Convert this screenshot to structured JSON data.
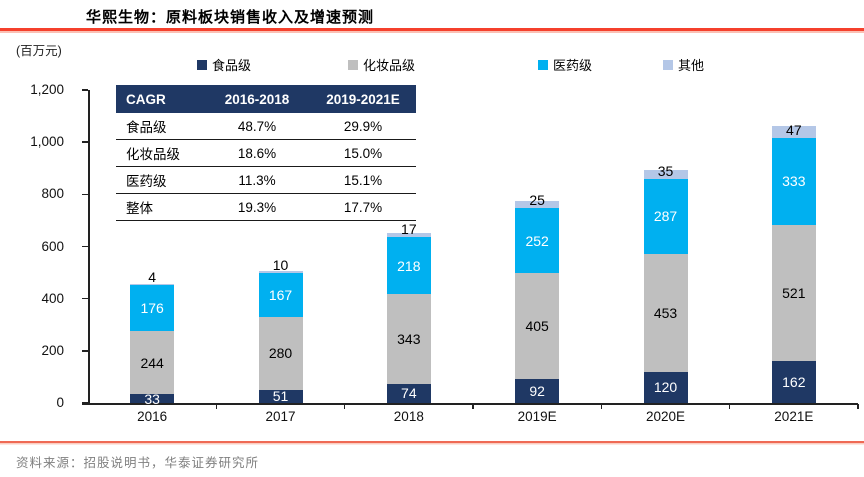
{
  "header": {
    "title": "华熙生物：原料板块销售收入及增速预测"
  },
  "footer": {
    "source": "资料来源：招股说明书，华泰证券研究所"
  },
  "chart_data": {
    "type": "bar",
    "stacked": true,
    "title": "华熙生物：原料板块销售收入及增速预测",
    "unit_label": "(百万元)",
    "xlabel": "",
    "ylabel": "(百万元)",
    "categories": [
      "2016",
      "2017",
      "2018",
      "2019E",
      "2020E",
      "2021E"
    ],
    "series": [
      {
        "key": "food-grade",
        "name": "食品级",
        "color": "#1F3864",
        "label_color": "#FFFFFF",
        "values": [
          33,
          51,
          74,
          92,
          120,
          162
        ]
      },
      {
        "key": "cosmetic-grade",
        "name": "化妆品级",
        "color": "#BFBFBF",
        "label_color": "#000000",
        "values": [
          244,
          280,
          343,
          405,
          453,
          521
        ]
      },
      {
        "key": "pharma-grade",
        "name": "医药级",
        "color": "#00B0F0",
        "label_color": "#FFFFFF",
        "values": [
          176,
          167,
          218,
          252,
          287,
          333
        ]
      },
      {
        "key": "other",
        "name": "其他",
        "color": "#B4C7E7",
        "label_color": "#000000",
        "values": [
          4,
          10,
          17,
          25,
          35,
          47
        ]
      }
    ],
    "y_axis": {
      "min": 0,
      "max": 1200,
      "ticks": [
        "1,200",
        "1,000",
        "800",
        "600",
        "400",
        "200",
        "0"
      ],
      "tick_values": [
        1200,
        1000,
        800,
        600,
        400,
        200,
        0
      ]
    },
    "legend_position": "top",
    "grid": false
  },
  "cagr_table": {
    "header_bg": "#1F3864",
    "columns": [
      "CAGR",
      "2016-2018",
      "2019-2021E"
    ],
    "rows": [
      {
        "label": "食品级",
        "v1": "48.7%",
        "v2": "29.9%"
      },
      {
        "label": "化妆品级",
        "v1": "18.6%",
        "v2": "15.0%"
      },
      {
        "label": "医药级",
        "v1": "11.3%",
        "v2": "15.1%"
      },
      {
        "label": "整体",
        "v1": "19.3%",
        "v2": "17.7%"
      }
    ]
  }
}
